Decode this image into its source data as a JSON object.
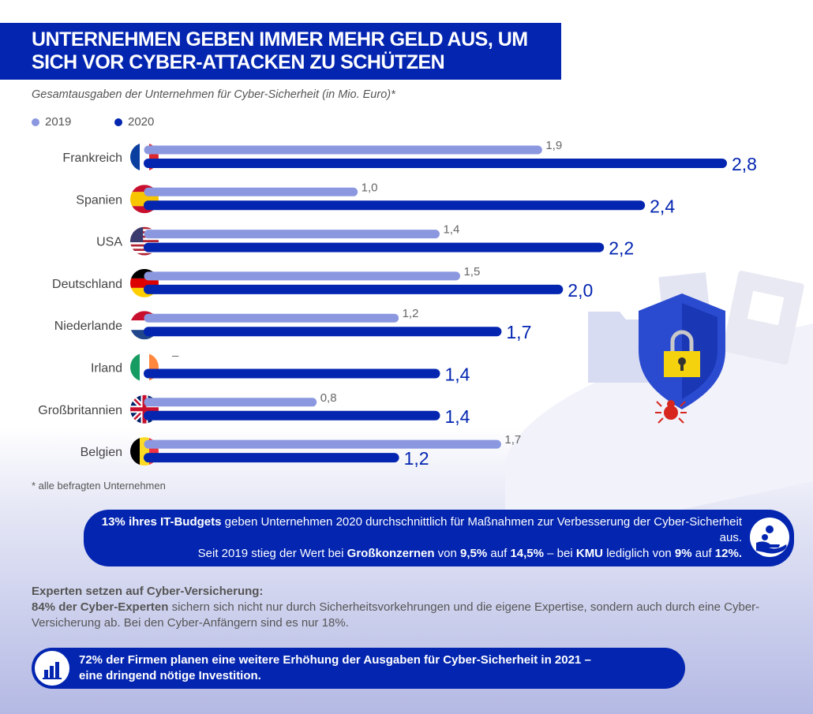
{
  "title": "UNTERNEHMEN GEBEN IMMER MEHR GELD AUS, UM SICH VOR CYBER-ATTACKEN ZU SCHÜTZEN",
  "colors": {
    "2019": "#8b98e0",
    "2020": "#0325b0",
    "brand": "#0325b0"
  },
  "chart_data": {
    "type": "bar",
    "orientation": "horizontal",
    "title": "Gesamtausgaben der Unternehmen für Cyber-Sicherheit (in Mio. Euro)*",
    "legend_position": "top-left",
    "grid": false,
    "categories": [
      "Frankreich",
      "Spanien",
      "USA",
      "Deutschland",
      "Niederlande",
      "Irland",
      "Großbritannien",
      "Belgien"
    ],
    "series": [
      {
        "name": "2019",
        "values": [
          1.9,
          1.0,
          1.4,
          1.5,
          1.2,
          null,
          0.8,
          1.7
        ],
        "labels": [
          "1,9",
          "1,0",
          "1,4",
          "1,5",
          "1,2",
          "–",
          "0,8",
          "1,7"
        ]
      },
      {
        "name": "2020",
        "values": [
          2.8,
          2.4,
          2.2,
          2.0,
          1.7,
          1.4,
          1.4,
          1.2
        ],
        "labels": [
          "2,8",
          "2,4",
          "2,2",
          "2,0",
          "1,7",
          "1,4",
          "1,4",
          "1,2"
        ]
      }
    ],
    "xlim": [
      0,
      2.8
    ]
  },
  "footnote": "* alle befragten Unternehmen",
  "box1": {
    "b1": "13% ihres IT-Budgets",
    "t1": " geben Unternehmen 2020 durchschnittlich für Maßnahmen zur Verbesserung der Cyber-Sicherheit aus.",
    "t2": "Seit 2019 stieg der Wert bei ",
    "b2": "Großkonzernen",
    "t3": " von ",
    "b3": "9,5%",
    "t4": " auf ",
    "b4": "14,5%",
    "t5": " – bei ",
    "b5": "KMU",
    "t6": " lediglich von ",
    "b6": "9%",
    "t7": " auf ",
    "b7": "12%."
  },
  "experts": {
    "heading": "Experten setzen auf Cyber-Versicherung:",
    "b1": "84% der Cyber-Experten",
    "t1": " sichern sich nicht nur durch Sicherheitsvorkehrungen und die eigene Expertise, sondern auch durch eine Cyber-Versicherung ab. Bei den Cyber-Anfängern sind es nur 18%."
  },
  "box2": {
    "text1": "72% der Firmen planen eine weitere Erhöhung der Ausgaben für Cyber-Sicherheit in 2021 –",
    "text2": "eine dringend nötige Investition."
  }
}
